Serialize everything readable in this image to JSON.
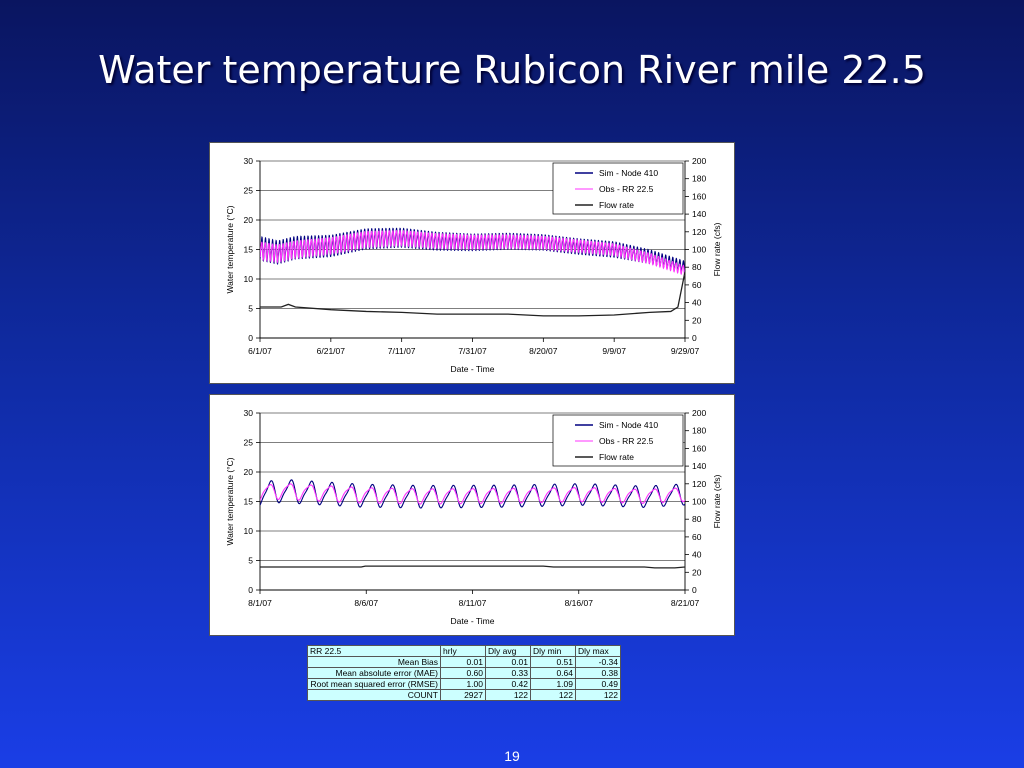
{
  "slide": {
    "title": "Water temperature Rubicon River mile 22.5",
    "page_number": "19"
  },
  "colors": {
    "sim": "#000080",
    "obs": "#ff33ff",
    "flow": "#222222"
  },
  "chart_data": [
    {
      "type": "line",
      "xlabel": "Date - Time",
      "ylabel": "Water temperature (°C)",
      "y2label": "Flow rate (cfs)",
      "x_tick_labels": [
        "6/1/07",
        "6/21/07",
        "7/11/07",
        "7/31/07",
        "8/20/07",
        "9/9/07",
        "9/29/07"
      ],
      "x_range_days": [
        0,
        120
      ],
      "ylim": [
        0,
        30
      ],
      "y_ticks": [
        0,
        5,
        10,
        15,
        20,
        25,
        30
      ],
      "y2lim": [
        0,
        200
      ],
      "y2_ticks": [
        0,
        20,
        40,
        60,
        80,
        100,
        120,
        140,
        160,
        180,
        200
      ],
      "grid": "horizontal",
      "legend_position": "top-right",
      "series": [
        {
          "name": "Sim - Node 410",
          "axis": "left",
          "color_key": "sim",
          "style": "diurnal",
          "mean": [
            [
              0,
              15.2
            ],
            [
              5,
              14.5
            ],
            [
              10,
              15.3
            ],
            [
              20,
              15.6
            ],
            [
              30,
              16.8
            ],
            [
              40,
              17.0
            ],
            [
              50,
              16.4
            ],
            [
              60,
              16.2
            ],
            [
              70,
              16.4
            ],
            [
              80,
              16.2
            ],
            [
              90,
              15.5
            ],
            [
              100,
              15.0
            ],
            [
              110,
              13.8
            ],
            [
              120,
              12.0
            ]
          ],
          "amplitude": [
            [
              0,
              2.0
            ],
            [
              20,
              1.8
            ],
            [
              40,
              1.6
            ],
            [
              60,
              1.4
            ],
            [
              80,
              1.3
            ],
            [
              100,
              1.3
            ],
            [
              120,
              1.0
            ]
          ]
        },
        {
          "name": "Obs - RR 22.5",
          "axis": "left",
          "color_key": "obs",
          "style": "diurnal",
          "mean": [
            [
              0,
              15.0
            ],
            [
              5,
              14.5
            ],
            [
              10,
              15.2
            ],
            [
              20,
              15.8
            ],
            [
              30,
              16.9
            ],
            [
              40,
              17.1
            ],
            [
              50,
              16.6
            ],
            [
              60,
              16.4
            ],
            [
              70,
              16.5
            ],
            [
              80,
              16.3
            ],
            [
              90,
              15.7
            ],
            [
              100,
              15.1
            ],
            [
              110,
              13.6
            ],
            [
              120,
              11.5
            ]
          ],
          "amplitude": [
            [
              0,
              1.5
            ],
            [
              20,
              1.4
            ],
            [
              40,
              1.3
            ],
            [
              60,
              1.2
            ],
            [
              80,
              1.1
            ],
            [
              100,
              1.0
            ],
            [
              120,
              0.8
            ]
          ]
        },
        {
          "name": "Flow  rate",
          "axis": "right",
          "color_key": "flow",
          "style": "line",
          "points": [
            [
              0,
              35
            ],
            [
              6,
              35
            ],
            [
              8,
              38
            ],
            [
              10,
              35
            ],
            [
              20,
              32
            ],
            [
              30,
              30
            ],
            [
              40,
              29
            ],
            [
              50,
              27
            ],
            [
              60,
              27
            ],
            [
              70,
              27
            ],
            [
              80,
              25
            ],
            [
              90,
              25
            ],
            [
              100,
              26
            ],
            [
              110,
              29
            ],
            [
              116,
              30
            ],
            [
              118,
              35
            ],
            [
              119,
              55
            ],
            [
              120,
              75
            ]
          ]
        }
      ]
    },
    {
      "type": "line",
      "xlabel": "Date - Time",
      "ylabel": "Water temperature (°C)",
      "y2label": "Flow rate (cfs)",
      "x_tick_labels": [
        "8/1/07",
        "8/6/07",
        "8/11/07",
        "8/16/07",
        "8/21/07"
      ],
      "x_range_days": [
        0,
        21
      ],
      "ylim": [
        0,
        30
      ],
      "y_ticks": [
        0,
        5,
        10,
        15,
        20,
        25,
        30
      ],
      "y2lim": [
        0,
        200
      ],
      "y2_ticks": [
        0,
        20,
        40,
        60,
        80,
        100,
        120,
        140,
        160,
        180,
        200
      ],
      "grid": "horizontal",
      "legend_position": "top-right",
      "series": [
        {
          "name": "Sim - Node 410",
          "axis": "left",
          "color_key": "sim",
          "style": "diurnal",
          "mean": [
            [
              0,
              16.2
            ],
            [
              1,
              16.8
            ],
            [
              2,
              16.6
            ],
            [
              5,
              16.0
            ],
            [
              8,
              15.8
            ],
            [
              12,
              15.9
            ],
            [
              16,
              16.2
            ],
            [
              19,
              15.8
            ],
            [
              21,
              16.2
            ]
          ],
          "amplitude": [
            [
              0,
              2.0
            ],
            [
              21,
              1.8
            ]
          ]
        },
        {
          "name": "Obs - RR 22.5",
          "axis": "left",
          "color_key": "obs",
          "style": "diurnal",
          "mean": [
            [
              0,
              16.4
            ],
            [
              1,
              16.9
            ],
            [
              2,
              16.7
            ],
            [
              5,
              16.2
            ],
            [
              8,
              16.0
            ],
            [
              12,
              16.1
            ],
            [
              16,
              16.3
            ],
            [
              19,
              16.0
            ],
            [
              21,
              16.3
            ]
          ],
          "amplitude": [
            [
              0,
              1.4
            ],
            [
              21,
              1.2
            ]
          ]
        },
        {
          "name": "Flow  rate",
          "axis": "right",
          "color_key": "flow",
          "style": "line",
          "points": [
            [
              0,
              26
            ],
            [
              5,
              26
            ],
            [
              5.2,
              27
            ],
            [
              14,
              27
            ],
            [
              14.5,
              26
            ],
            [
              19,
              26
            ],
            [
              19.5,
              25
            ],
            [
              20.5,
              25
            ],
            [
              21,
              26
            ]
          ]
        }
      ]
    }
  ],
  "stats_table": {
    "header": [
      "RR 22.5",
      "hrly",
      "Dly avg",
      "Dly min",
      "Dly max"
    ],
    "rows": [
      {
        "label": "Mean Bias",
        "values": [
          "0.01",
          "0.01",
          "0.51",
          "-0.34"
        ]
      },
      {
        "label": "Mean absolute error (MAE)",
        "values": [
          "0.60",
          "0.33",
          "0.64",
          "0.38"
        ]
      },
      {
        "label": "Root mean squared error (RMSE)",
        "values": [
          "1.00",
          "0.42",
          "1.09",
          "0.49"
        ]
      },
      {
        "label": "COUNT",
        "values": [
          "2927",
          "122",
          "122",
          "122"
        ]
      }
    ]
  }
}
